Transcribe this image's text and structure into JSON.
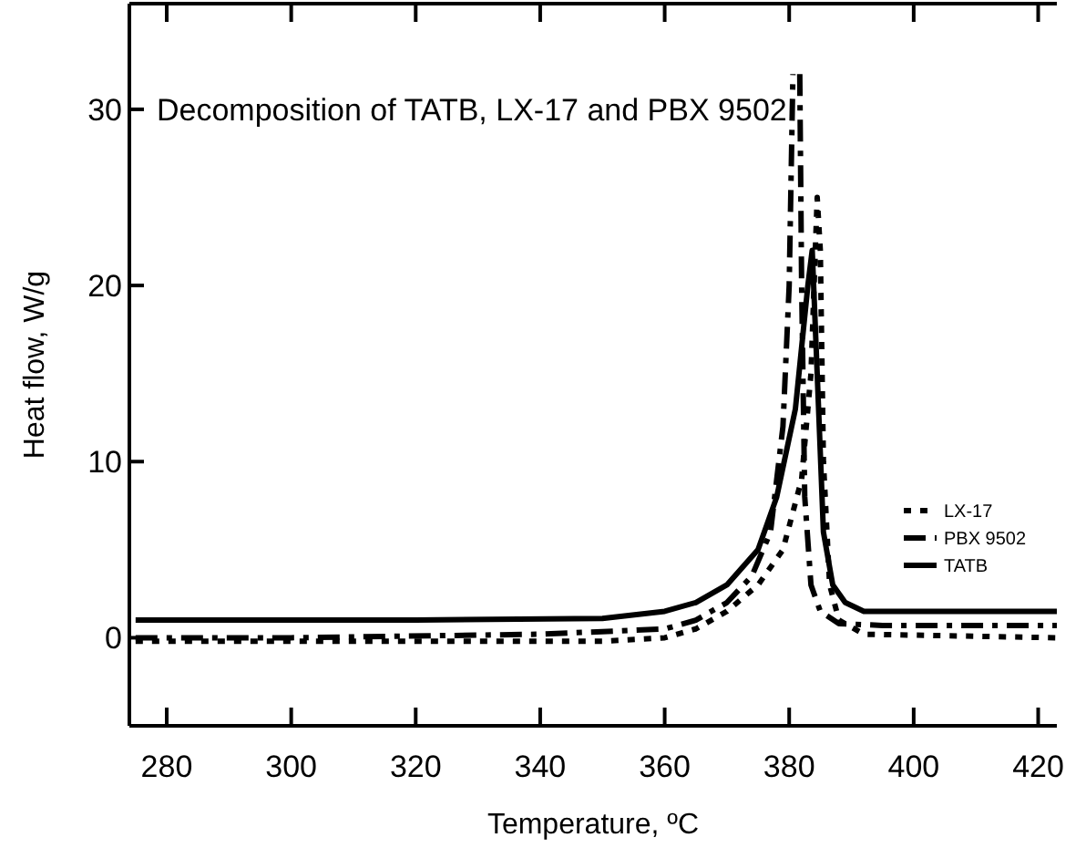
{
  "chart_data": {
    "type": "line",
    "title": "Decomposition of TATB, LX-17 and PBX 9502",
    "xlabel": "Temperature, ºC",
    "ylabel": "Heat flow, W/g",
    "xlim": [
      274,
      423
    ],
    "ylim": [
      -5,
      36
    ],
    "xticks": [
      280,
      300,
      320,
      340,
      360,
      380,
      400,
      420
    ],
    "yticks": [
      0,
      10,
      20,
      30
    ],
    "grid": false,
    "legend": "right",
    "marker": "none",
    "series": [
      {
        "name": "LX-17",
        "color": "#000000",
        "line_style": "dotted",
        "x": [
          275,
          300,
          350,
          360,
          365,
          370,
          375,
          379,
          382,
          383.5,
          384.5,
          385,
          385.5,
          386.5,
          388,
          392,
          423
        ],
        "values": [
          -0.2,
          -0.2,
          -0.2,
          0,
          0.5,
          1.5,
          3,
          5,
          9,
          15,
          25,
          22,
          10,
          3,
          1,
          0.2,
          0
        ]
      },
      {
        "name": "PBX 9502",
        "color": "#000000",
        "line_style": "dashed",
        "x": [
          275,
          300,
          340,
          360,
          365,
          370,
          374,
          377,
          379,
          380,
          380.6,
          380.9,
          381.4,
          381.7,
          382,
          382.5,
          383.5,
          385,
          388,
          395,
          423
        ],
        "values": [
          0,
          0,
          0.2,
          0.5,
          1,
          2,
          3.5,
          6,
          12,
          20,
          32,
          null,
          null,
          32,
          20,
          8,
          3,
          1.5,
          0.8,
          0.7,
          0.7
        ]
      },
      {
        "name": "TATB",
        "color": "#000000",
        "line_style": "solid",
        "x": [
          275,
          320,
          350,
          360,
          365,
          370,
          375,
          378,
          381,
          383,
          383.7,
          384.5,
          385.5,
          387,
          389,
          392,
          423
        ],
        "values": [
          1,
          1,
          1.1,
          1.5,
          2,
          3,
          5,
          8,
          13,
          20,
          22,
          15,
          6,
          3,
          2,
          1.5,
          1.5
        ]
      }
    ]
  }
}
